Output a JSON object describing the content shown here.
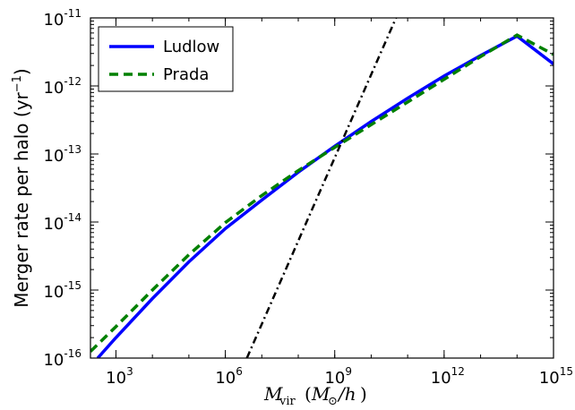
{
  "chart_data": {
    "type": "line",
    "xscale": "log",
    "yscale": "log",
    "xlim": [
      200,
      1000000000000000.0
    ],
    "ylim": [
      1e-16,
      1e-11
    ],
    "xlabel": "M_vir (M_⊙/h)",
    "ylabel": "Merger rate per halo (yr⁻¹)",
    "xticks": [
      {
        "value": 1000.0,
        "base": "10",
        "exp": "3"
      },
      {
        "value": 1000000.0,
        "base": "10",
        "exp": "6"
      },
      {
        "value": 1000000000.0,
        "base": "10",
        "exp": "9"
      },
      {
        "value": 1000000000000.0,
        "base": "10",
        "exp": "12"
      },
      {
        "value": 1000000000000000.0,
        "base": "10",
        "exp": "15"
      }
    ],
    "yticks": [
      {
        "value": 1e-16,
        "base": "10",
        "exp": "-16"
      },
      {
        "value": 1e-15,
        "base": "10",
        "exp": "-15"
      },
      {
        "value": 1e-14,
        "base": "10",
        "exp": "-14"
      },
      {
        "value": 1e-13,
        "base": "10",
        "exp": "-13"
      },
      {
        "value": 1e-12,
        "base": "10",
        "exp": "-12"
      },
      {
        "value": 1e-11,
        "base": "10",
        "exp": "-11"
      }
    ],
    "legend_position": "top-left",
    "grid": false,
    "series": [
      {
        "name": "Ludlow",
        "color": "#0000ff",
        "style": "solid",
        "points": [
          [
            316,
            1e-16
          ],
          [
            1000.0,
            2e-16
          ],
          [
            10000.0,
            7.5e-16
          ],
          [
            100000.0,
            2.6e-15
          ],
          [
            1000000.0,
            8e-15
          ],
          [
            10000000.0,
            2.1e-14
          ],
          [
            100000000.0,
            5.4e-14
          ],
          [
            1000000000.0,
            1.3e-13
          ],
          [
            10000000000.0,
            3e-13
          ],
          [
            100000000000.0,
            6.6e-13
          ],
          [
            1000000000000.0,
            1.4e-12
          ],
          [
            10000000000000.0,
            2.8e-12
          ],
          [
            100000000000000.0,
            5.4e-12
          ],
          [
            1000000000000000.0,
            2.1e-12
          ]
        ]
      },
      {
        "name": "Prada",
        "color": "#008000",
        "style": "dashed",
        "points": [
          [
            200,
            1.25e-16
          ],
          [
            1000.0,
            2.9e-16
          ],
          [
            10000.0,
            1e-15
          ],
          [
            100000.0,
            3.3e-15
          ],
          [
            1000000.0,
            9.8e-15
          ],
          [
            10000000.0,
            2.45e-14
          ],
          [
            100000000.0,
            5.7e-14
          ],
          [
            1000000000.0,
            1.25e-13
          ],
          [
            10000000000.0,
            2.7e-13
          ],
          [
            100000000000.0,
            5.8e-13
          ],
          [
            1000000000000.0,
            1.25e-12
          ],
          [
            10000000000000.0,
            2.7e-12
          ],
          [
            100000000000000.0,
            5.6e-12
          ],
          [
            1000000000000000.0,
            2.9e-12
          ]
        ]
      },
      {
        "name": "",
        "color": "#000000",
        "style": "dashdot",
        "points": [
          [
            3900000.0,
            1e-16
          ],
          [
            48000000000.0,
            1e-11
          ]
        ]
      }
    ],
    "legend": [
      {
        "label": "Ludlow",
        "color": "#0000ff",
        "style": "solid"
      },
      {
        "label": "Prada",
        "color": "#008000",
        "style": "dashed"
      }
    ]
  }
}
